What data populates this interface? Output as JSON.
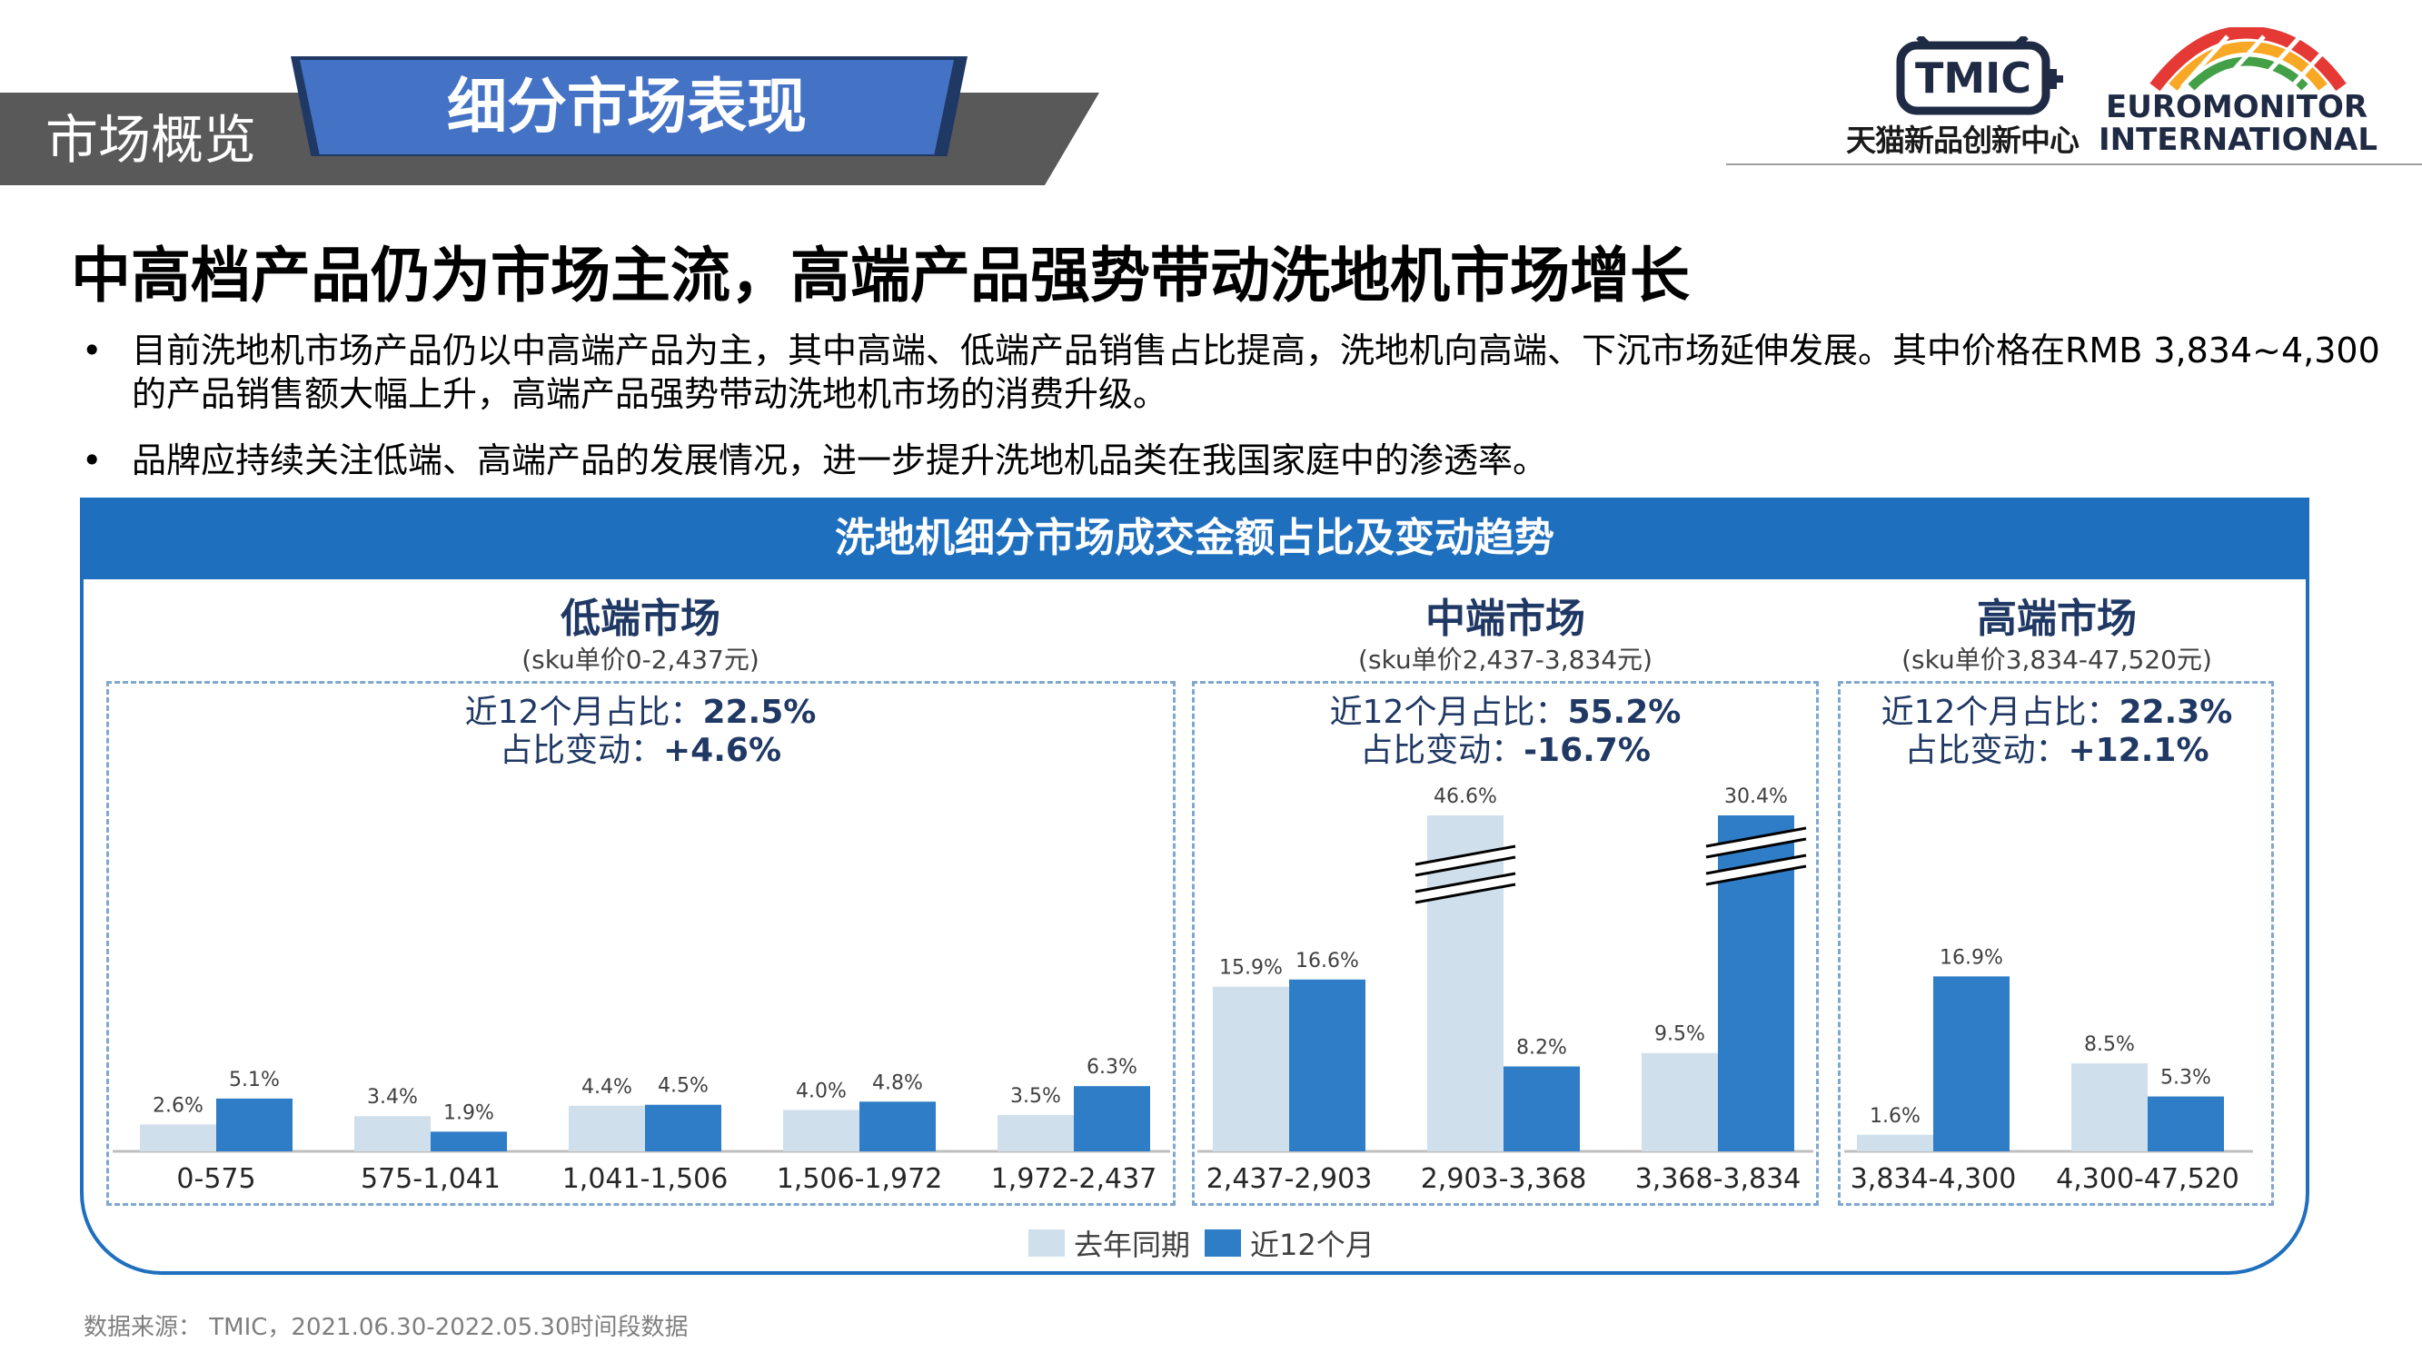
{
  "header": {
    "section_label": "市场概览",
    "page_label": "细分市场表现"
  },
  "logos": {
    "tmic_mark": "TMIC",
    "tmic_subtitle": "天猫新品创新中心",
    "euromonitor_line1": "EUROMONITOR",
    "euromonitor_line2": "INTERNATIONAL"
  },
  "title": "中高档产品仍为市场主流，高端产品强势带动洗地机市场增长",
  "bullets": [
    "目前洗地机市场产品仍以中高端产品为主，其中高端、低端产品销售占比提高，洗地机向高端、下沉市场延伸发展。其中价格在RMB 3,834~4,300的产品销售额大幅上升，高端产品强势带动洗地机市场的消费升级。",
    "品牌应持续关注低端、高端产品的发展情况，进一步提升洗地机品类在我国家庭中的渗透率。"
  ],
  "source": "数据来源： TMIC，2021.06.30-2022.05.30时间段数据",
  "colors": {
    "last_year": "#d0dfec",
    "recent": "#2e7dc6",
    "frame": "#1f6fbf",
    "banner_blue": "#4472c4",
    "banner_dark": "#595959"
  },
  "chart_data": {
    "type": "bar",
    "title": "洗地机细分市场成交金额占比及变动趋势",
    "legend": {
      "position": "bottom-center",
      "entries": [
        "去年同期",
        "近12个月"
      ]
    },
    "series_names": [
      "去年同期",
      "近12个月"
    ],
    "segments": [
      {
        "name": "低端市场",
        "range": "(sku单价0-2,437元)",
        "share_label": "近12个月占比：",
        "share": "22.5%",
        "change_label": "占比变动：",
        "change": "+4.6%",
        "categories": [
          "0-575",
          "575-1,041",
          "1,041-1,506",
          "1,506-1,972",
          "1,972-2,437"
        ],
        "last_year": [
          2.6,
          3.4,
          4.4,
          4.0,
          3.5
        ],
        "recent": [
          5.1,
          1.9,
          4.5,
          4.8,
          6.3
        ],
        "last_year_labels": [
          "2.6%",
          "3.4%",
          "4.4%",
          "4.0%",
          "3.5%"
        ],
        "recent_labels": [
          "5.1%",
          "1.9%",
          "4.5%",
          "4.8%",
          "6.3%"
        ]
      },
      {
        "name": "中端市场",
        "range": "(sku单价2,437-3,834元)",
        "share_label": "近12个月占比：",
        "share": "55.2%",
        "change_label": "占比变动：",
        "change": "-16.7%",
        "categories": [
          "2,437-2,903",
          "2,903-3,368",
          "3,368-3,834"
        ],
        "last_year": [
          15.9,
          46.6,
          9.5
        ],
        "recent": [
          16.6,
          8.2,
          30.4
        ],
        "last_year_labels": [
          "15.9%",
          "46.6%",
          "9.5%"
        ],
        "recent_labels": [
          "16.6%",
          "8.2%",
          "30.4%"
        ],
        "axis_breaks": [
          "2,903-3,368 去年同期",
          "3,368-3,834 近12个月"
        ]
      },
      {
        "name": "高端市场",
        "range": "(sku单价3,834-47,520元)",
        "share_label": "近12个月占比：",
        "share": "22.3%",
        "change_label": "占比变动：",
        "change": "+12.1%",
        "categories": [
          "3,834-4,300",
          "4,300-47,520"
        ],
        "last_year": [
          1.6,
          8.5
        ],
        "recent": [
          16.9,
          5.3
        ],
        "last_year_labels": [
          "1.6%",
          "8.5%"
        ],
        "recent_labels": [
          "16.9%",
          "5.3%"
        ]
      }
    ]
  }
}
